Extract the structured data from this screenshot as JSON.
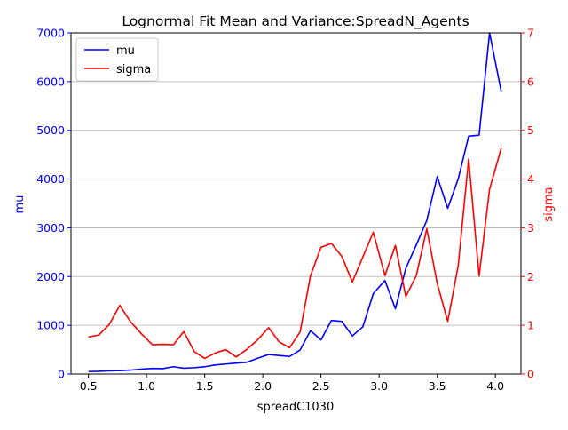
{
  "chart_data": {
    "type": "line",
    "title": "Lognormal Fit Mean and Variance:SpreadN_Agents",
    "xlabel": "spreadC1030",
    "ylabel_left": "mu",
    "ylabel_right": "sigma",
    "xlim": [
      0.35,
      4.22
    ],
    "ylim_left": [
      0,
      7000
    ],
    "ylim_right": [
      0,
      7
    ],
    "x_ticks": [
      0.5,
      1.0,
      1.5,
      2.0,
      2.5,
      3.0,
      3.5,
      4.0
    ],
    "x_tick_labels": [
      "0.5",
      "1.0",
      "1.5",
      "2.0",
      "2.5",
      "3.0",
      "3.5",
      "4.0"
    ],
    "y_left_ticks": [
      0,
      1000,
      2000,
      3000,
      4000,
      5000,
      6000,
      7000
    ],
    "y_left_tick_labels": [
      "0",
      "1000",
      "2000",
      "3000",
      "4000",
      "5000",
      "6000",
      "7000"
    ],
    "y_right_ticks": [
      0,
      1,
      2,
      3,
      4,
      5,
      6,
      7
    ],
    "y_right_tick_labels": [
      "0",
      "1",
      "2",
      "3",
      "4",
      "5",
      "6",
      "7"
    ],
    "grid": "horizontal",
    "legend_placement": "top-left",
    "colors": {
      "left_axis": "#0000ff",
      "right_axis": "#ff0000",
      "grid": "#b0b0b0",
      "spine": "#000000"
    },
    "x": [
      0.5,
      0.59,
      0.68,
      0.77,
      0.86,
      0.95,
      1.05,
      1.14,
      1.23,
      1.32,
      1.41,
      1.5,
      1.59,
      1.68,
      1.77,
      1.86,
      1.95,
      2.05,
      2.14,
      2.23,
      2.32,
      2.41,
      2.5,
      2.59,
      2.68,
      2.77,
      2.86,
      2.95,
      3.05,
      3.14,
      3.23,
      3.32,
      3.41,
      3.5,
      3.59,
      3.68,
      3.77,
      3.86,
      3.95,
      4.05
    ],
    "series": [
      {
        "name": "mu",
        "axis": "left",
        "color": "#0000ff",
        "values": [
          50,
          55,
          65,
          70,
          80,
          100,
          115,
          110,
          150,
          120,
          130,
          150,
          185,
          205,
          225,
          240,
          320,
          400,
          380,
          360,
          490,
          890,
          700,
          1100,
          1080,
          780,
          970,
          1650,
          1920,
          1340,
          2170,
          2650,
          3150,
          4050,
          3400,
          4000,
          4880,
          4900,
          7000,
          5800
        ]
      },
      {
        "name": "sigma",
        "axis": "right",
        "color": "#ff0000",
        "values": [
          0.76,
          0.8,
          1.02,
          1.41,
          1.08,
          0.84,
          0.6,
          0.61,
          0.6,
          0.87,
          0.46,
          0.32,
          0.43,
          0.5,
          0.35,
          0.5,
          0.69,
          0.95,
          0.66,
          0.54,
          0.86,
          2.02,
          2.6,
          2.68,
          2.41,
          1.89,
          2.4,
          2.91,
          2.02,
          2.64,
          1.59,
          2.02,
          2.98,
          1.86,
          1.08,
          2.22,
          4.41,
          2.01,
          3.79,
          4.63
        ]
      }
    ]
  }
}
